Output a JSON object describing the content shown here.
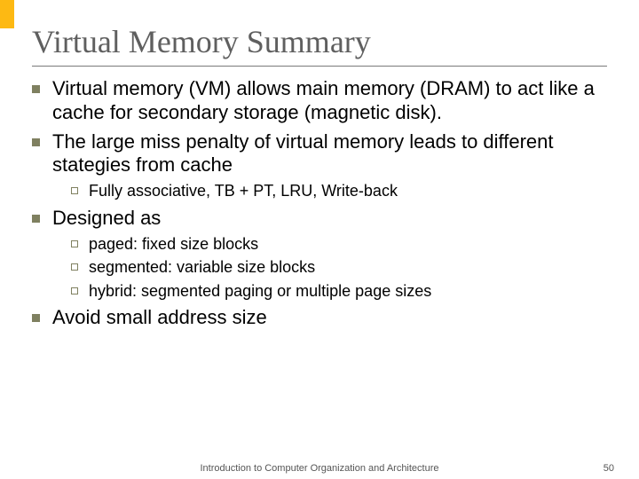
{
  "accent_color": "#fdb913",
  "title": "Virtual Memory Summary",
  "bullets": [
    {
      "level": 1,
      "text": "Virtual memory (VM) allows main memory (DRAM) to act like a cache for secondary storage (magnetic disk)."
    },
    {
      "level": 1,
      "text": "The large miss penalty of virtual memory leads to different stategies from cache"
    },
    {
      "level": 2,
      "text": "Fully associative, TB + PT, LRU, Write-back"
    },
    {
      "level": 1,
      "text": "Designed as"
    },
    {
      "level": 2,
      "text": "paged: fixed size blocks"
    },
    {
      "level": 2,
      "text": "segmented: variable size blocks"
    },
    {
      "level": 2,
      "text": "hybrid: segmented paging or multiple page sizes"
    },
    {
      "level": 1,
      "text": "Avoid small address size"
    }
  ],
  "footer": {
    "center": "Introduction to Computer Organization and Architecture",
    "page": "50"
  }
}
